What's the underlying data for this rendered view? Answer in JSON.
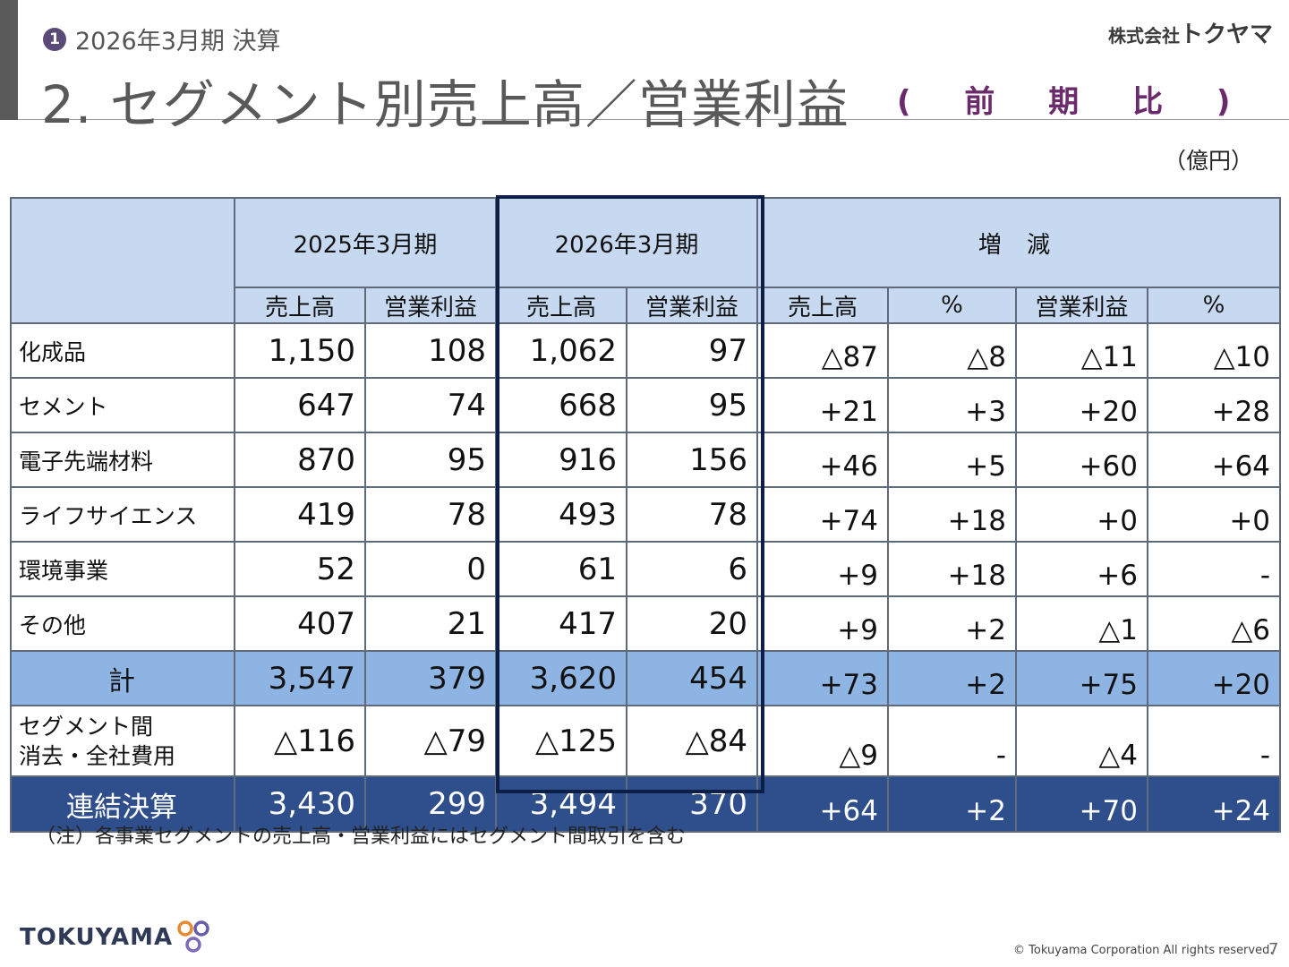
{
  "header": {
    "badge": "1",
    "kicker": "2026年3月期 決算",
    "title": "2. セグメント別売上高／営業利益",
    "subtitle": [
      "(",
      "前",
      "期",
      "比",
      ")"
    ],
    "company_small": "株式会社",
    "company_name": "トクヤマ",
    "unit": "（億円）"
  },
  "table": {
    "groups": [
      "2025年3月期",
      "2026年3月期",
      "増 減"
    ],
    "subheads": [
      "売上高",
      "営業利益",
      "売上高",
      "営業利益",
      "売上高",
      "%",
      "営業利益",
      "%"
    ],
    "rows": [
      {
        "label": "化成品",
        "v": [
          "1,150",
          "108",
          "1,062",
          "97"
        ],
        "d": [
          "△87",
          "△8",
          "△11",
          "△10"
        ]
      },
      {
        "label": "セメント",
        "v": [
          "647",
          "74",
          "668",
          "95"
        ],
        "d": [
          "+21",
          "+3",
          "+20",
          "+28"
        ]
      },
      {
        "label": "電子先端材料",
        "v": [
          "870",
          "95",
          "916",
          "156"
        ],
        "d": [
          "+46",
          "+5",
          "+60",
          "+64"
        ]
      },
      {
        "label": "ライフサイエンス",
        "v": [
          "419",
          "78",
          "493",
          "78"
        ],
        "d": [
          "+74",
          "+18",
          "+0",
          "+0"
        ]
      },
      {
        "label": "環境事業",
        "v": [
          "52",
          "0",
          "61",
          "6"
        ],
        "d": [
          "+9",
          "+18",
          "+6",
          "-"
        ]
      },
      {
        "label": "その他",
        "v": [
          "407",
          "21",
          "417",
          "20"
        ],
        "d": [
          "+9",
          "+2",
          "△1",
          "△6"
        ]
      }
    ],
    "total": {
      "label": "計",
      "v": [
        "3,547",
        "379",
        "3,620",
        "454"
      ],
      "d": [
        "+73",
        "+2",
        "+75",
        "+20"
      ]
    },
    "elimination": {
      "label1": "セグメント間",
      "label2": "消去・全社費用",
      "v": [
        "△116",
        "△79",
        "△125",
        "△84"
      ],
      "d": [
        "△9",
        "-",
        "△4",
        "-"
      ]
    },
    "consolidated": {
      "label": "連結決算",
      "v": [
        "3,430",
        "299",
        "3,494",
        "370"
      ],
      "d": [
        "+64",
        "+2",
        "+70",
        "+24"
      ]
    }
  },
  "note": "（注）各事業セグメントの売上高・営業利益にはセグメント間取引を含む",
  "footer": {
    "logo_text": "TOKUYAMA",
    "copyright": "© Tokuyama Corporation All rights reserved.",
    "page": "7"
  }
}
